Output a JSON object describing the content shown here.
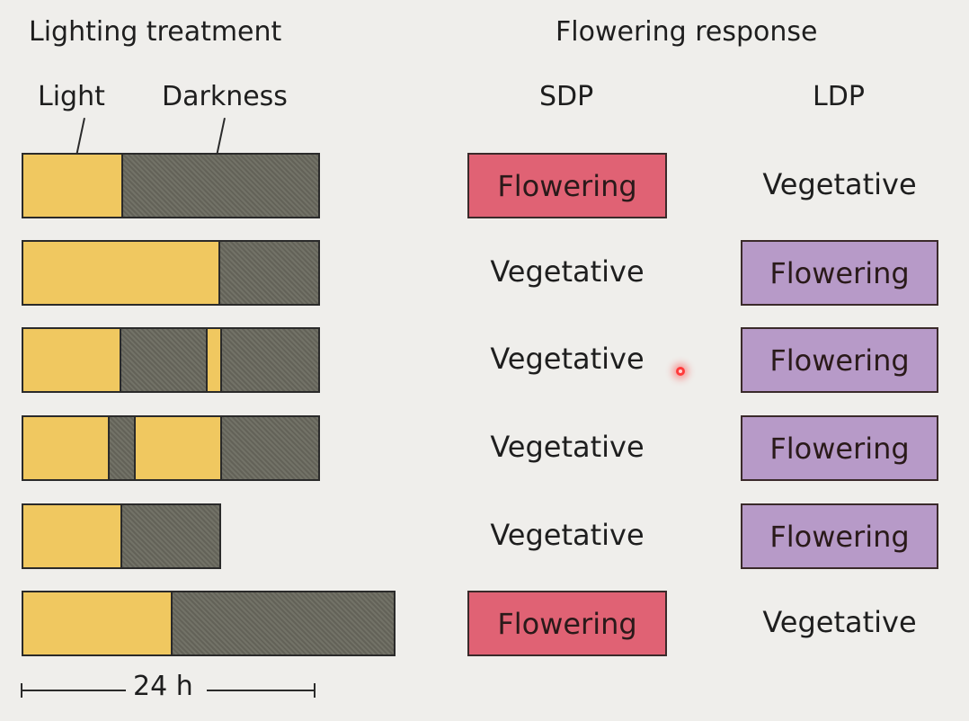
{
  "headers": {
    "lighting_treatment": "Lighting treatment",
    "flowering_response": "Flowering response",
    "light": "Light",
    "darkness": "Darkness",
    "sdp": "SDP",
    "ldp": "LDP"
  },
  "rows": [
    {
      "segments": [
        {
          "type": "light",
          "hours": 8
        },
        {
          "type": "dark",
          "hours": 16
        }
      ],
      "sdp": "Flowering",
      "ldp": "Vegetative"
    },
    {
      "segments": [
        {
          "type": "light",
          "hours": 16
        },
        {
          "type": "dark",
          "hours": 8
        }
      ],
      "sdp": "Vegetative",
      "ldp": "Flowering"
    },
    {
      "segments": [
        {
          "type": "light",
          "hours": 8
        },
        {
          "type": "dark",
          "hours": 7
        },
        {
          "type": "light",
          "hours": 1
        },
        {
          "type": "dark",
          "hours": 8
        }
      ],
      "sdp": "Vegetative",
      "ldp": "Flowering"
    },
    {
      "segments": [
        {
          "type": "light",
          "hours": 7
        },
        {
          "type": "dark",
          "hours": 2
        },
        {
          "type": "light",
          "hours": 7
        },
        {
          "type": "dark",
          "hours": 8
        }
      ],
      "sdp": "Vegetative",
      "ldp": "Flowering"
    },
    {
      "segments": [
        {
          "type": "light",
          "hours": 8
        },
        {
          "type": "dark",
          "hours": 8
        }
      ],
      "sdp": "Vegetative",
      "ldp": "Flowering"
    },
    {
      "segments": [
        {
          "type": "light",
          "hours": 12
        },
        {
          "type": "dark",
          "hours": 18
        }
      ],
      "sdp": "Flowering",
      "ldp": "Vegetative"
    }
  ],
  "scale_label": "24 h",
  "colors": {
    "light": "#f0c860",
    "dark": "#6b6a5f",
    "sdp_flowering": "#e06274",
    "ldp_flowering": "#b79ac8"
  }
}
